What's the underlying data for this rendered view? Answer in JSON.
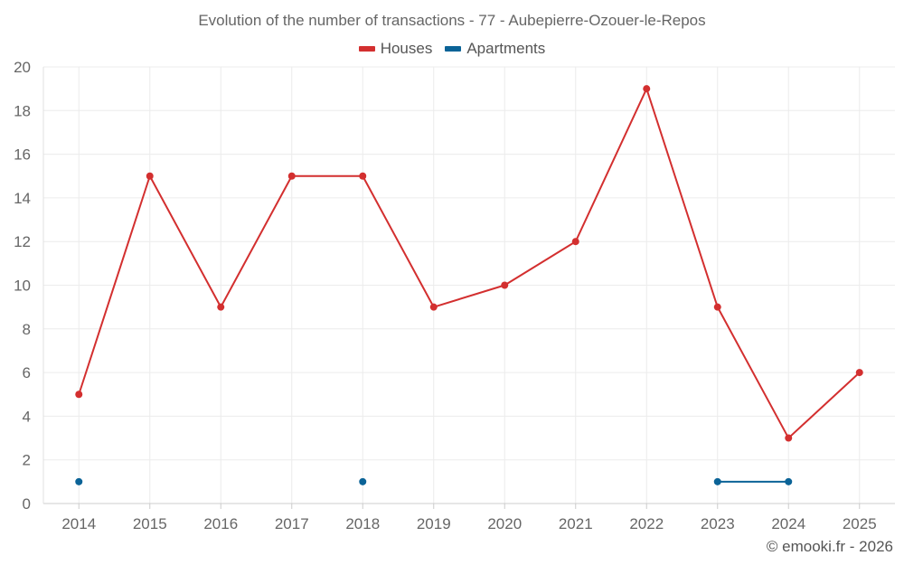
{
  "chart_data": {
    "type": "line",
    "title": "Evolution of the number of transactions - 77 - Aubepierre-Ozouer-le-Repos",
    "xlabel": "",
    "ylabel": "",
    "categories": [
      "2014",
      "2015",
      "2016",
      "2017",
      "2018",
      "2019",
      "2020",
      "2021",
      "2022",
      "2023",
      "2024",
      "2025"
    ],
    "ylim": [
      0,
      20
    ],
    "yticks": [
      0,
      2,
      4,
      6,
      8,
      10,
      12,
      14,
      16,
      18,
      20
    ],
    "grid": true,
    "legend_position": "top-center",
    "series": [
      {
        "name": "Houses",
        "color": "#d32f2f",
        "values": [
          5,
          15,
          9,
          15,
          15,
          9,
          10,
          12,
          19,
          9,
          3,
          6
        ]
      },
      {
        "name": "Apartments",
        "color": "#0b6397",
        "values": [
          1,
          null,
          null,
          null,
          1,
          null,
          null,
          null,
          null,
          1,
          1,
          null
        ]
      }
    ]
  },
  "footer": {
    "credit": "© emooki.fr - 2026"
  }
}
